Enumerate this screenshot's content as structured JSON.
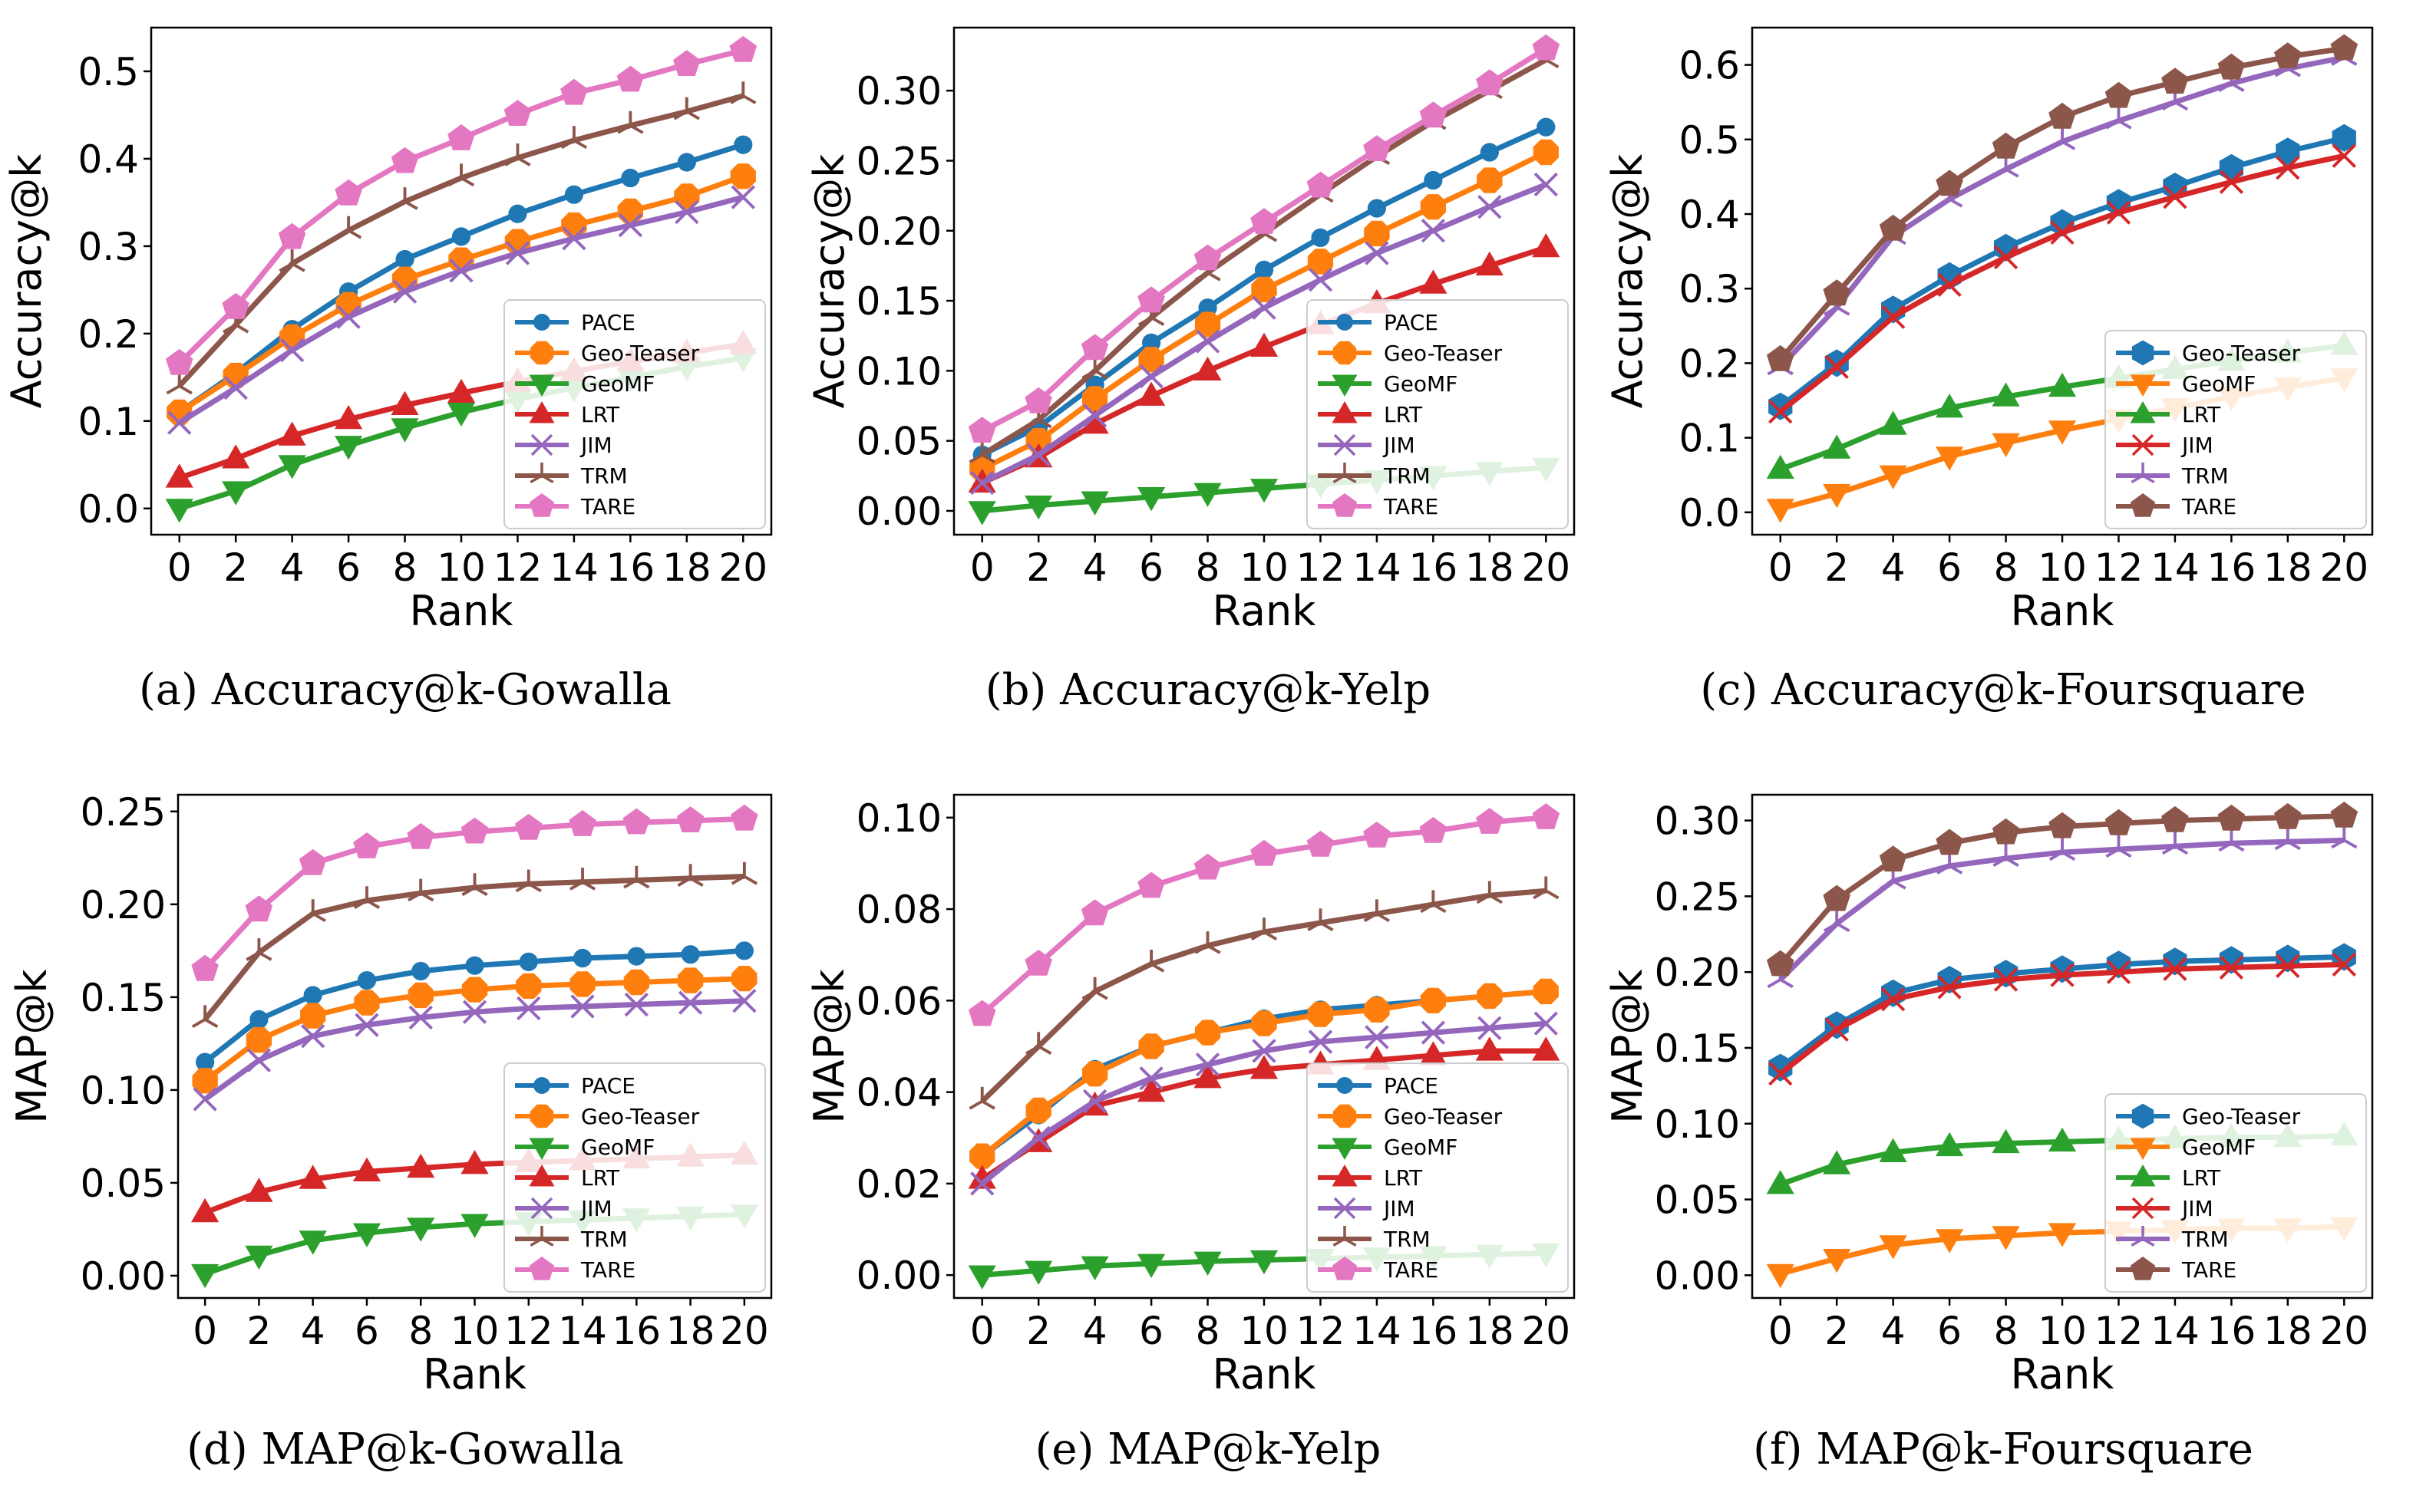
{
  "figure": {
    "captions": [
      "(a)  Accuracy@k-Gowalla",
      "(b)  Accuracy@k-Yelp",
      "(c)  Accuracy@k-Foursquare",
      "(d)  MAP@k-Gowalla",
      "(e)  MAP@k-Yelp",
      "(f)  MAP@k-Foursquare"
    ]
  },
  "styles": {
    "PACE": {
      "color": "#1f77b4",
      "marker": "circle"
    },
    "Geo-Teaser": {
      "color": "#ff7f0e",
      "marker": "octagon"
    },
    "GeoMF": {
      "color": "#2ca02c",
      "marker": "triangle-down"
    },
    "LRT": {
      "color": "#d62728",
      "marker": "triangle-up"
    },
    "JIM": {
      "color": "#9467bd",
      "marker": "x"
    },
    "TRM": {
      "color": "#8c564b",
      "marker": "tri-down"
    },
    "TARE": {
      "color": "#e377c2",
      "marker": "pentagon"
    },
    "Geo-Teaser (c,f)": {
      "color": "#1f77b4",
      "marker": "hexagon"
    },
    "GeoMF (c,f)": {
      "color": "#ff7f0e",
      "marker": "triangle-down"
    },
    "LRT (c,f)": {
      "color": "#2ca02c",
      "marker": "triangle-up"
    },
    "JIM (c,f)": {
      "color": "#d62728",
      "marker": "x"
    },
    "TRM (c,f)": {
      "color": "#9467bd",
      "marker": "tri-down"
    },
    "TARE (c,f)": {
      "color": "#8c564b",
      "marker": "pentagon"
    }
  },
  "chart_data": [
    {
      "type": "line",
      "title": "",
      "xlabel": "Rank",
      "ylabel": "Accuracy@k",
      "x": [
        0,
        2,
        4,
        6,
        8,
        10,
        12,
        14,
        16,
        18,
        20
      ],
      "xlim": [
        -1,
        21
      ],
      "ylim": [
        -0.03,
        0.55
      ],
      "yticks": [
        "0.0",
        "0.1",
        "0.2",
        "0.3",
        "0.4",
        "0.5"
      ],
      "legend": "lower-right",
      "series": [
        {
          "name": "PACE",
          "style": "PACE",
          "values": [
            0.11,
            0.155,
            0.205,
            0.248,
            0.285,
            0.311,
            0.337,
            0.359,
            0.378,
            0.396,
            0.416
          ]
        },
        {
          "name": "Geo-Teaser",
          "style": "Geo-Teaser",
          "values": [
            0.11,
            0.152,
            0.196,
            0.233,
            0.262,
            0.284,
            0.305,
            0.324,
            0.34,
            0.357,
            0.38
          ]
        },
        {
          "name": "GeoMF",
          "style": "GeoMF",
          "values": [
            0.0,
            0.02,
            0.05,
            0.072,
            0.092,
            0.11,
            0.125,
            0.138,
            0.15,
            0.162,
            0.172
          ]
        },
        {
          "name": "LRT",
          "style": "LRT",
          "values": [
            0.035,
            0.057,
            0.083,
            0.102,
            0.118,
            0.132,
            0.145,
            0.157,
            0.168,
            0.178,
            0.188
          ]
        },
        {
          "name": "JIM",
          "style": "JIM",
          "values": [
            0.098,
            0.138,
            0.181,
            0.219,
            0.248,
            0.272,
            0.292,
            0.309,
            0.324,
            0.339,
            0.356
          ]
        },
        {
          "name": "TRM",
          "style": "TRM",
          "values": [
            0.14,
            0.21,
            0.28,
            0.318,
            0.351,
            0.378,
            0.401,
            0.421,
            0.438,
            0.454,
            0.472
          ]
        },
        {
          "name": "TARE",
          "style": "TARE",
          "values": [
            0.166,
            0.23,
            0.31,
            0.36,
            0.397,
            0.423,
            0.451,
            0.475,
            0.49,
            0.508,
            0.524
          ]
        }
      ]
    },
    {
      "type": "line",
      "title": "",
      "xlabel": "Rank",
      "ylabel": "Accuracy@k",
      "x": [
        0,
        2,
        4,
        6,
        8,
        10,
        12,
        14,
        16,
        18,
        20
      ],
      "xlim": [
        -1,
        21
      ],
      "ylim": [
        -0.017,
        0.345
      ],
      "yticks": [
        "0.00",
        "0.05",
        "0.10",
        "0.15",
        "0.20",
        "0.25",
        "0.30"
      ],
      "legend": "lower-right",
      "series": [
        {
          "name": "PACE",
          "style": "PACE",
          "values": [
            0.04,
            0.06,
            0.09,
            0.12,
            0.145,
            0.172,
            0.195,
            0.216,
            0.236,
            0.256,
            0.274
          ]
        },
        {
          "name": "Geo-Teaser",
          "style": "Geo-Teaser",
          "values": [
            0.03,
            0.05,
            0.08,
            0.108,
            0.133,
            0.158,
            0.178,
            0.198,
            0.217,
            0.236,
            0.256
          ]
        },
        {
          "name": "GeoMF",
          "style": "GeoMF",
          "values": [
            0.0,
            0.004,
            0.007,
            0.01,
            0.013,
            0.016,
            0.019,
            0.022,
            0.025,
            0.028,
            0.031
          ]
        },
        {
          "name": "LRT",
          "style": "LRT",
          "values": [
            0.02,
            0.038,
            0.062,
            0.082,
            0.1,
            0.117,
            0.133,
            0.148,
            0.162,
            0.175,
            0.188
          ]
        },
        {
          "name": "JIM",
          "style": "JIM",
          "values": [
            0.02,
            0.04,
            0.068,
            0.096,
            0.121,
            0.145,
            0.165,
            0.184,
            0.2,
            0.217,
            0.233
          ]
        },
        {
          "name": "TRM",
          "style": "TRM",
          "values": [
            0.04,
            0.065,
            0.1,
            0.138,
            0.17,
            0.198,
            0.226,
            0.253,
            0.278,
            0.3,
            0.322
          ]
        },
        {
          "name": "TARE",
          "style": "TARE",
          "values": [
            0.057,
            0.078,
            0.116,
            0.15,
            0.18,
            0.206,
            0.232,
            0.258,
            0.282,
            0.305,
            0.33
          ]
        }
      ]
    },
    {
      "type": "line",
      "title": "",
      "xlabel": "Rank",
      "ylabel": "Accuracy@k",
      "x": [
        0,
        2,
        4,
        6,
        8,
        10,
        12,
        14,
        16,
        18,
        20
      ],
      "xlim": [
        -1,
        21
      ],
      "ylim": [
        -0.03,
        0.65
      ],
      "yticks": [
        "0.0",
        "0.1",
        "0.2",
        "0.3",
        "0.4",
        "0.5",
        "0.6"
      ],
      "legend": "lower-right",
      "series": [
        {
          "name": "Geo-Teaser",
          "style": "Geo-Teaser (c,f)",
          "values": [
            0.142,
            0.2,
            0.272,
            0.317,
            0.355,
            0.388,
            0.415,
            0.437,
            0.462,
            0.484,
            0.502
          ]
        },
        {
          "name": "GeoMF",
          "style": "GeoMF (c,f)",
          "values": [
            0.005,
            0.025,
            0.05,
            0.075,
            0.093,
            0.11,
            0.125,
            0.14,
            0.155,
            0.168,
            0.18
          ]
        },
        {
          "name": "LRT",
          "style": "LRT (c,f)",
          "values": [
            0.058,
            0.085,
            0.117,
            0.14,
            0.155,
            0.168,
            0.18,
            0.192,
            0.203,
            0.214,
            0.224
          ]
        },
        {
          "name": "JIM",
          "style": "JIM (c,f)",
          "values": [
            0.135,
            0.195,
            0.262,
            0.305,
            0.342,
            0.375,
            0.402,
            0.423,
            0.443,
            0.462,
            0.478
          ]
        },
        {
          "name": "TRM",
          "style": "TRM (c,f)",
          "values": [
            0.195,
            0.275,
            0.37,
            0.42,
            0.46,
            0.497,
            0.525,
            0.55,
            0.575,
            0.595,
            0.61
          ]
        },
        {
          "name": "TARE",
          "style": "TARE (c,f)",
          "values": [
            0.205,
            0.293,
            0.38,
            0.44,
            0.49,
            0.53,
            0.558,
            0.577,
            0.596,
            0.611,
            0.622
          ]
        }
      ]
    },
    {
      "type": "line",
      "title": "",
      "xlabel": "Rank",
      "ylabel": "MAP@k",
      "x": [
        0,
        2,
        4,
        6,
        8,
        10,
        12,
        14,
        16,
        18,
        20
      ],
      "xlim": [
        -1,
        21
      ],
      "ylim": [
        -0.012,
        0.259
      ],
      "yticks": [
        "0.00",
        "0.05",
        "0.10",
        "0.15",
        "0.20",
        "0.25"
      ],
      "legend": "lower-right",
      "series": [
        {
          "name": "PACE",
          "style": "PACE",
          "values": [
            0.115,
            0.138,
            0.151,
            0.159,
            0.164,
            0.167,
            0.169,
            0.171,
            0.172,
            0.173,
            0.175
          ]
        },
        {
          "name": "Geo-Teaser",
          "style": "Geo-Teaser",
          "values": [
            0.105,
            0.127,
            0.14,
            0.147,
            0.151,
            0.154,
            0.156,
            0.157,
            0.158,
            0.159,
            0.16
          ]
        },
        {
          "name": "GeoMF",
          "style": "GeoMF",
          "values": [
            0.001,
            0.011,
            0.019,
            0.023,
            0.026,
            0.028,
            0.029,
            0.03,
            0.031,
            0.032,
            0.033
          ]
        },
        {
          "name": "LRT",
          "style": "LRT",
          "values": [
            0.034,
            0.045,
            0.052,
            0.056,
            0.058,
            0.06,
            0.061,
            0.062,
            0.063,
            0.064,
            0.065
          ]
        },
        {
          "name": "JIM",
          "style": "JIM",
          "values": [
            0.095,
            0.116,
            0.129,
            0.135,
            0.139,
            0.142,
            0.144,
            0.145,
            0.146,
            0.147,
            0.148
          ]
        },
        {
          "name": "TRM",
          "style": "TRM",
          "values": [
            0.138,
            0.174,
            0.195,
            0.202,
            0.206,
            0.209,
            0.211,
            0.212,
            0.213,
            0.214,
            0.215
          ]
        },
        {
          "name": "TARE",
          "style": "TARE",
          "values": [
            0.165,
            0.197,
            0.222,
            0.231,
            0.236,
            0.239,
            0.241,
            0.243,
            0.244,
            0.245,
            0.246
          ]
        }
      ]
    },
    {
      "type": "line",
      "title": "",
      "xlabel": "Rank",
      "ylabel": "MAP@k",
      "x": [
        0,
        2,
        4,
        6,
        8,
        10,
        12,
        14,
        16,
        18,
        20
      ],
      "xlim": [
        -1,
        21
      ],
      "ylim": [
        -0.005,
        0.105
      ],
      "yticks": [
        "0.00",
        "0.02",
        "0.04",
        "0.06",
        "0.08",
        "0.10"
      ],
      "legend": "lower-right",
      "series": [
        {
          "name": "PACE",
          "style": "PACE",
          "values": [
            0.026,
            0.035,
            0.045,
            0.05,
            0.053,
            0.056,
            0.058,
            0.059,
            0.06,
            0.061,
            0.062
          ]
        },
        {
          "name": "Geo-Teaser",
          "style": "Geo-Teaser",
          "values": [
            0.026,
            0.036,
            0.044,
            0.05,
            0.053,
            0.055,
            0.057,
            0.058,
            0.06,
            0.061,
            0.062
          ]
        },
        {
          "name": "GeoMF",
          "style": "GeoMF",
          "values": [
            0.0,
            0.001,
            0.002,
            0.0025,
            0.003,
            0.0033,
            0.0036,
            0.0039,
            0.0042,
            0.0045,
            0.0048
          ]
        },
        {
          "name": "LRT",
          "style": "LRT",
          "values": [
            0.021,
            0.029,
            0.037,
            0.04,
            0.043,
            0.045,
            0.046,
            0.047,
            0.048,
            0.049,
            0.049
          ]
        },
        {
          "name": "JIM",
          "style": "JIM",
          "values": [
            0.02,
            0.03,
            0.038,
            0.043,
            0.046,
            0.049,
            0.051,
            0.052,
            0.053,
            0.054,
            0.055
          ]
        },
        {
          "name": "TRM",
          "style": "TRM",
          "values": [
            0.038,
            0.05,
            0.062,
            0.068,
            0.072,
            0.075,
            0.077,
            0.079,
            0.081,
            0.083,
            0.084
          ]
        },
        {
          "name": "TARE",
          "style": "TARE",
          "values": [
            0.057,
            0.068,
            0.079,
            0.085,
            0.089,
            0.092,
            0.094,
            0.096,
            0.097,
            0.099,
            0.1
          ]
        }
      ]
    },
    {
      "type": "line",
      "title": "",
      "xlabel": "Rank",
      "ylabel": "MAP@k",
      "x": [
        0,
        2,
        4,
        6,
        8,
        10,
        12,
        14,
        16,
        18,
        20
      ],
      "xlim": [
        -1,
        21
      ],
      "ylim": [
        -0.015,
        0.317
      ],
      "yticks": [
        "0.00",
        "0.05",
        "0.10",
        "0.15",
        "0.20",
        "0.25",
        "0.30"
      ],
      "legend": "lower-right",
      "series": [
        {
          "name": "Geo-Teaser",
          "style": "Geo-Teaser (c,f)",
          "values": [
            0.137,
            0.165,
            0.186,
            0.195,
            0.199,
            0.202,
            0.205,
            0.207,
            0.208,
            0.209,
            0.21
          ]
        },
        {
          "name": "GeoMF",
          "style": "GeoMF (c,f)",
          "values": [
            0.001,
            0.011,
            0.02,
            0.024,
            0.026,
            0.028,
            0.029,
            0.03,
            0.031,
            0.031,
            0.032
          ]
        },
        {
          "name": "LRT",
          "style": "LRT (c,f)",
          "values": [
            0.06,
            0.073,
            0.081,
            0.085,
            0.087,
            0.088,
            0.089,
            0.09,
            0.091,
            0.091,
            0.092
          ]
        },
        {
          "name": "JIM",
          "style": "JIM (c,f)",
          "values": [
            0.133,
            0.162,
            0.182,
            0.19,
            0.195,
            0.198,
            0.2,
            0.202,
            0.203,
            0.204,
            0.205
          ]
        },
        {
          "name": "TRM",
          "style": "TRM (c,f)",
          "values": [
            0.195,
            0.232,
            0.26,
            0.27,
            0.275,
            0.279,
            0.281,
            0.283,
            0.285,
            0.286,
            0.287
          ]
        },
        {
          "name": "TARE",
          "style": "TARE (c,f)",
          "values": [
            0.205,
            0.248,
            0.274,
            0.285,
            0.292,
            0.296,
            0.298,
            0.3,
            0.301,
            0.302,
            0.303
          ]
        }
      ]
    }
  ]
}
